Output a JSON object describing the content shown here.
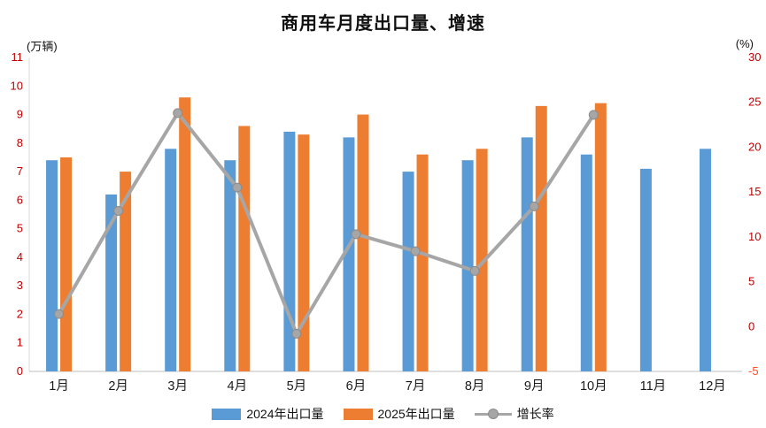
{
  "chart_data": {
    "type": "bar",
    "title": "商用车月度出口量、增速",
    "categories": [
      "1月",
      "2月",
      "3月",
      "4月",
      "5月",
      "6月",
      "7月",
      "8月",
      "9月",
      "10月",
      "11月",
      "12月"
    ],
    "series": [
      {
        "name": "2024年出口量",
        "type": "bar",
        "axis": "left",
        "color": "#5B9BD5",
        "values": [
          7.4,
          6.2,
          7.8,
          7.4,
          8.4,
          8.2,
          7.0,
          7.4,
          8.2,
          7.6,
          7.1,
          7.8
        ]
      },
      {
        "name": "2025年出口量",
        "type": "bar",
        "axis": "left",
        "color": "#ED7D31",
        "values": [
          7.5,
          7.0,
          9.6,
          8.6,
          8.3,
          9.0,
          7.6,
          7.8,
          9.3,
          9.4,
          null,
          null
        ]
      },
      {
        "name": "增长率",
        "type": "line",
        "axis": "right",
        "color": "#A6A6A6",
        "marker_border": "#8C8C8C",
        "values": [
          1.4,
          12.9,
          23.8,
          15.5,
          -0.8,
          10.3,
          8.4,
          6.2,
          13.4,
          23.6,
          null,
          null
        ]
      }
    ],
    "left_axis": {
      "unit": "(万辆)",
      "min": 0,
      "max": 11,
      "step": 1,
      "tick_color": "#C00000"
    },
    "right_axis": {
      "unit": "(%)",
      "min": -5,
      "max": 30,
      "step": 5,
      "tick_color": "#C00000",
      "negative_tick_color": "#FF4B1F"
    },
    "x_axis": {
      "label_color": "#1a1a1a"
    },
    "legend_position": "bottom",
    "grid": false
  }
}
